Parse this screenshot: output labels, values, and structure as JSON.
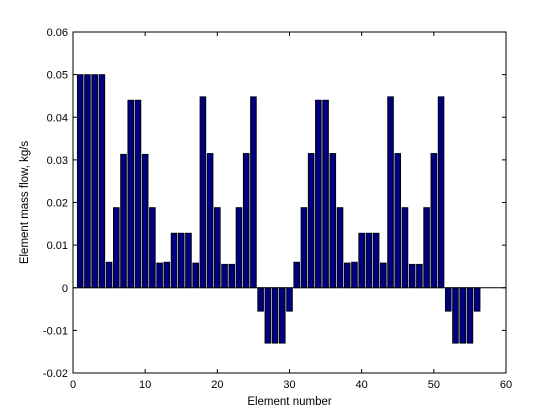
{
  "chart_data": {
    "type": "bar",
    "title": "",
    "xlabel": "Element number",
    "ylabel": "Element mass flow, kg/s",
    "xlim": [
      0,
      60
    ],
    "ylim": [
      -0.02,
      0.06
    ],
    "xticks": [
      0,
      10,
      20,
      30,
      40,
      50,
      60
    ],
    "yticks": [
      -0.02,
      -0.01,
      0,
      0.01,
      0.02,
      0.03,
      0.04,
      0.05,
      0.06
    ],
    "xtick_labels": [
      "0",
      "10",
      "20",
      "30",
      "40",
      "50",
      "60"
    ],
    "ytick_labels": [
      "-0.02",
      "-0.01",
      "0",
      "0.01",
      "0.02",
      "0.03",
      "0.04",
      "0.05",
      "0.06"
    ],
    "grid": false,
    "bar_color": "#00007f",
    "x": [
      1,
      2,
      3,
      4,
      5,
      6,
      7,
      8,
      9,
      10,
      11,
      12,
      13,
      14,
      15,
      16,
      17,
      18,
      19,
      20,
      21,
      22,
      23,
      24,
      25,
      26,
      27,
      28,
      29,
      30,
      31,
      32,
      33,
      34,
      35,
      36,
      37,
      38,
      39,
      40,
      41,
      42,
      43,
      44,
      45,
      46,
      47,
      48,
      49,
      50,
      51,
      52,
      53,
      54,
      55,
      56
    ],
    "values": [
      0.05,
      0.05,
      0.05,
      0.05,
      0.006,
      0.0188,
      0.0313,
      0.044,
      0.044,
      0.0313,
      0.0188,
      0.0058,
      0.006,
      0.0128,
      0.0128,
      0.0128,
      0.0058,
      0.0448,
      0.0315,
      0.0188,
      0.0055,
      0.0055,
      0.0188,
      0.0315,
      0.0448,
      -0.0055,
      -0.013,
      -0.013,
      -0.013,
      -0.0055,
      0.006,
      0.0188,
      0.0315,
      0.044,
      0.044,
      0.0315,
      0.0188,
      0.0058,
      0.006,
      0.0128,
      0.0128,
      0.0128,
      0.0058,
      0.0448,
      0.0315,
      0.0188,
      0.0055,
      0.0055,
      0.0188,
      0.0315,
      0.0448,
      -0.0055,
      -0.013,
      -0.013,
      -0.013,
      -0.0055
    ]
  }
}
